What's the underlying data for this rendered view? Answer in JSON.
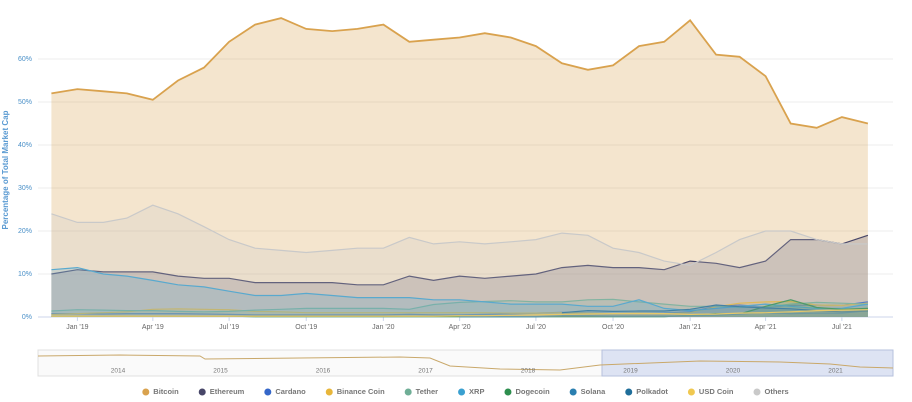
{
  "chart_data": {
    "type": "area",
    "y_label": "Percentage of Total Market Cap",
    "x": [
      "2018-12",
      "2019-01",
      "2019-02",
      "2019-03",
      "2019-04",
      "2019-05",
      "2019-06",
      "2019-07",
      "2019-08",
      "2019-09",
      "2019-10",
      "2019-11",
      "2019-12",
      "2020-01",
      "2020-02",
      "2020-03",
      "2020-04",
      "2020-05",
      "2020-06",
      "2020-07",
      "2020-08",
      "2020-09",
      "2020-10",
      "2020-11",
      "2020-12",
      "2021-01",
      "2021-02",
      "2021-03",
      "2021-04",
      "2021-05",
      "2021-06",
      "2021-07",
      "2021-08"
    ],
    "xlim": [
      "2018-11-15",
      "2021-08-31"
    ],
    "xticks": [
      {
        "value": "2019-01",
        "label": "Jan '19"
      },
      {
        "value": "2019-04",
        "label": "Apr '19"
      },
      {
        "value": "2019-07",
        "label": "Jul '19"
      },
      {
        "value": "2019-10",
        "label": "Oct '19"
      },
      {
        "value": "2020-01",
        "label": "Jan '20"
      },
      {
        "value": "2020-04",
        "label": "Apr '20"
      },
      {
        "value": "2020-07",
        "label": "Jul '20"
      },
      {
        "value": "2020-10",
        "label": "Oct '20"
      },
      {
        "value": "2021-01",
        "label": "Jan '21"
      },
      {
        "value": "2021-04",
        "label": "Apr '21"
      },
      {
        "value": "2021-07",
        "label": "Jul '21"
      }
    ],
    "ylim": [
      0,
      70
    ],
    "yticks": [
      {
        "value": 0,
        "label": "0%"
      },
      {
        "value": 10,
        "label": "10%"
      },
      {
        "value": 20,
        "label": "20%"
      },
      {
        "value": 30,
        "label": "30%"
      },
      {
        "value": 40,
        "label": "40%"
      },
      {
        "value": 50,
        "label": "50%"
      },
      {
        "value": 60,
        "label": "60%"
      }
    ],
    "grid": true,
    "legend": "bottom",
    "navigator_labels": [
      "2014",
      "2015",
      "2016",
      "2017",
      "2018",
      "2019",
      "2020",
      "2021"
    ],
    "series": [
      {
        "name": "Bitcoin",
        "color": "#d9a24e",
        "values": [
          52,
          53,
          52.5,
          52,
          50.5,
          55,
          58,
          64,
          68,
          69.5,
          67,
          66.5,
          67,
          68,
          64,
          64.5,
          65,
          66,
          65,
          63,
          59,
          57.5,
          58.5,
          63,
          64,
          69,
          61,
          60.5,
          56,
          45,
          44,
          46.5,
          45
        ]
      },
      {
        "name": "Ethereum",
        "color": "#474668",
        "values": [
          10,
          11,
          10.5,
          10.5,
          10.5,
          9.5,
          9,
          9,
          8,
          8,
          8,
          8,
          7.5,
          7.5,
          9.5,
          8.5,
          9.5,
          9,
          9.5,
          10,
          11.5,
          12,
          11.5,
          11.5,
          11,
          13,
          12.5,
          11.5,
          13,
          18,
          18,
          17,
          19
        ]
      },
      {
        "name": "Cardano",
        "color": "#3567c9",
        "values": [
          0.8,
          0.8,
          0.7,
          0.8,
          0.8,
          0.8,
          0.7,
          0.6,
          0.5,
          0.5,
          0.5,
          0.5,
          0.5,
          0.5,
          0.6,
          0.5,
          0.5,
          0.6,
          0.7,
          0.9,
          1.1,
          0.9,
          0.8,
          0.8,
          0.9,
          1.2,
          2.5,
          2.8,
          2.3,
          2.7,
          2.8,
          2.7,
          3.5
        ]
      },
      {
        "name": "Binance Coin",
        "color": "#e8b63a",
        "values": [
          0.6,
          0.8,
          1,
          1.2,
          1.8,
          1.9,
          1.8,
          1.7,
          1.3,
          1.2,
          1,
          1,
          1,
          1,
          1,
          1,
          1,
          1,
          0.9,
          0.9,
          1,
          0.9,
          0.8,
          0.9,
          0.8,
          1,
          2.4,
          3.2,
          3.5,
          3.6,
          2.8,
          2.7,
          3.2
        ]
      },
      {
        "name": "Tether",
        "color": "#6fae96",
        "values": [
          1.4,
          1.7,
          1.6,
          1.5,
          1.5,
          1.3,
          1.2,
          1.3,
          1.6,
          1.8,
          2,
          2,
          2,
          2,
          1.8,
          2.9,
          3.4,
          3.6,
          3.8,
          3.5,
          3.5,
          4,
          4.1,
          3.5,
          3,
          2.5,
          2.5,
          2.2,
          2.3,
          3,
          3.4,
          3.2,
          3
        ]
      },
      {
        "name": "XRP",
        "color": "#3aa0d0",
        "values": [
          11,
          11.5,
          10,
          9.5,
          8.5,
          7.5,
          7,
          6,
          5,
          5,
          5.5,
          5,
          4.5,
          4.5,
          4.5,
          4,
          4,
          3.5,
          3,
          3,
          3,
          2.5,
          2.5,
          4,
          2,
          1.5,
          2,
          2.5,
          3,
          2.5,
          2,
          2,
          3
        ]
      },
      {
        "name": "Dogecoin",
        "color": "#2d8e4e",
        "values": [
          0.2,
          0.2,
          0.2,
          0.2,
          0.2,
          0.2,
          0.2,
          0.2,
          0.1,
          0.1,
          0.1,
          0.1,
          0.1,
          0.1,
          0.1,
          0.1,
          0.1,
          0.1,
          0.1,
          0.1,
          0.1,
          0.1,
          0.1,
          0.1,
          0.1,
          0.4,
          0.8,
          0.7,
          2.5,
          4,
          2.2,
          1.8,
          2
        ]
      },
      {
        "name": "Solana",
        "color": "#2a7fb0",
        "values": [
          null,
          null,
          null,
          null,
          null,
          null,
          null,
          null,
          null,
          null,
          null,
          null,
          null,
          null,
          null,
          null,
          0.1,
          0.1,
          0.1,
          0.1,
          0.3,
          0.3,
          0.2,
          0.2,
          0.2,
          0.3,
          0.4,
          0.7,
          1,
          0.8,
          0.9,
          0.9,
          1.5
        ]
      },
      {
        "name": "Polkadot",
        "color": "#1f6e9a",
        "values": [
          null,
          null,
          null,
          null,
          null,
          null,
          null,
          null,
          null,
          null,
          null,
          null,
          null,
          null,
          null,
          null,
          null,
          null,
          null,
          null,
          1,
          1.5,
          1.3,
          1.4,
          1.4,
          1.8,
          2.8,
          2.4,
          2.1,
          1.9,
          1.5,
          1.2,
          1.4
        ]
      },
      {
        "name": "USD Coin",
        "color": "#f0c850",
        "values": [
          0.2,
          0.2,
          0.2,
          0.2,
          0.2,
          0.2,
          0.2,
          0.2,
          0.2,
          0.2,
          0.2,
          0.2,
          0.2,
          0.2,
          0.2,
          0.2,
          0.3,
          0.3,
          0.4,
          0.5,
          0.6,
          0.7,
          0.8,
          0.8,
          0.8,
          0.6,
          0.7,
          0.9,
          1,
          1.2,
          1.5,
          1.6,
          1.7
        ]
      },
      {
        "name": "Others",
        "color": "#c9c9c9",
        "values": [
          24,
          22,
          22,
          23,
          26,
          24,
          21,
          18,
          16,
          15.5,
          15,
          15.5,
          16,
          16,
          18.5,
          17,
          17.5,
          17,
          17.5,
          18,
          19.5,
          19,
          16,
          15,
          13,
          12,
          15,
          18,
          20,
          20,
          18,
          17,
          17
        ]
      }
    ]
  }
}
